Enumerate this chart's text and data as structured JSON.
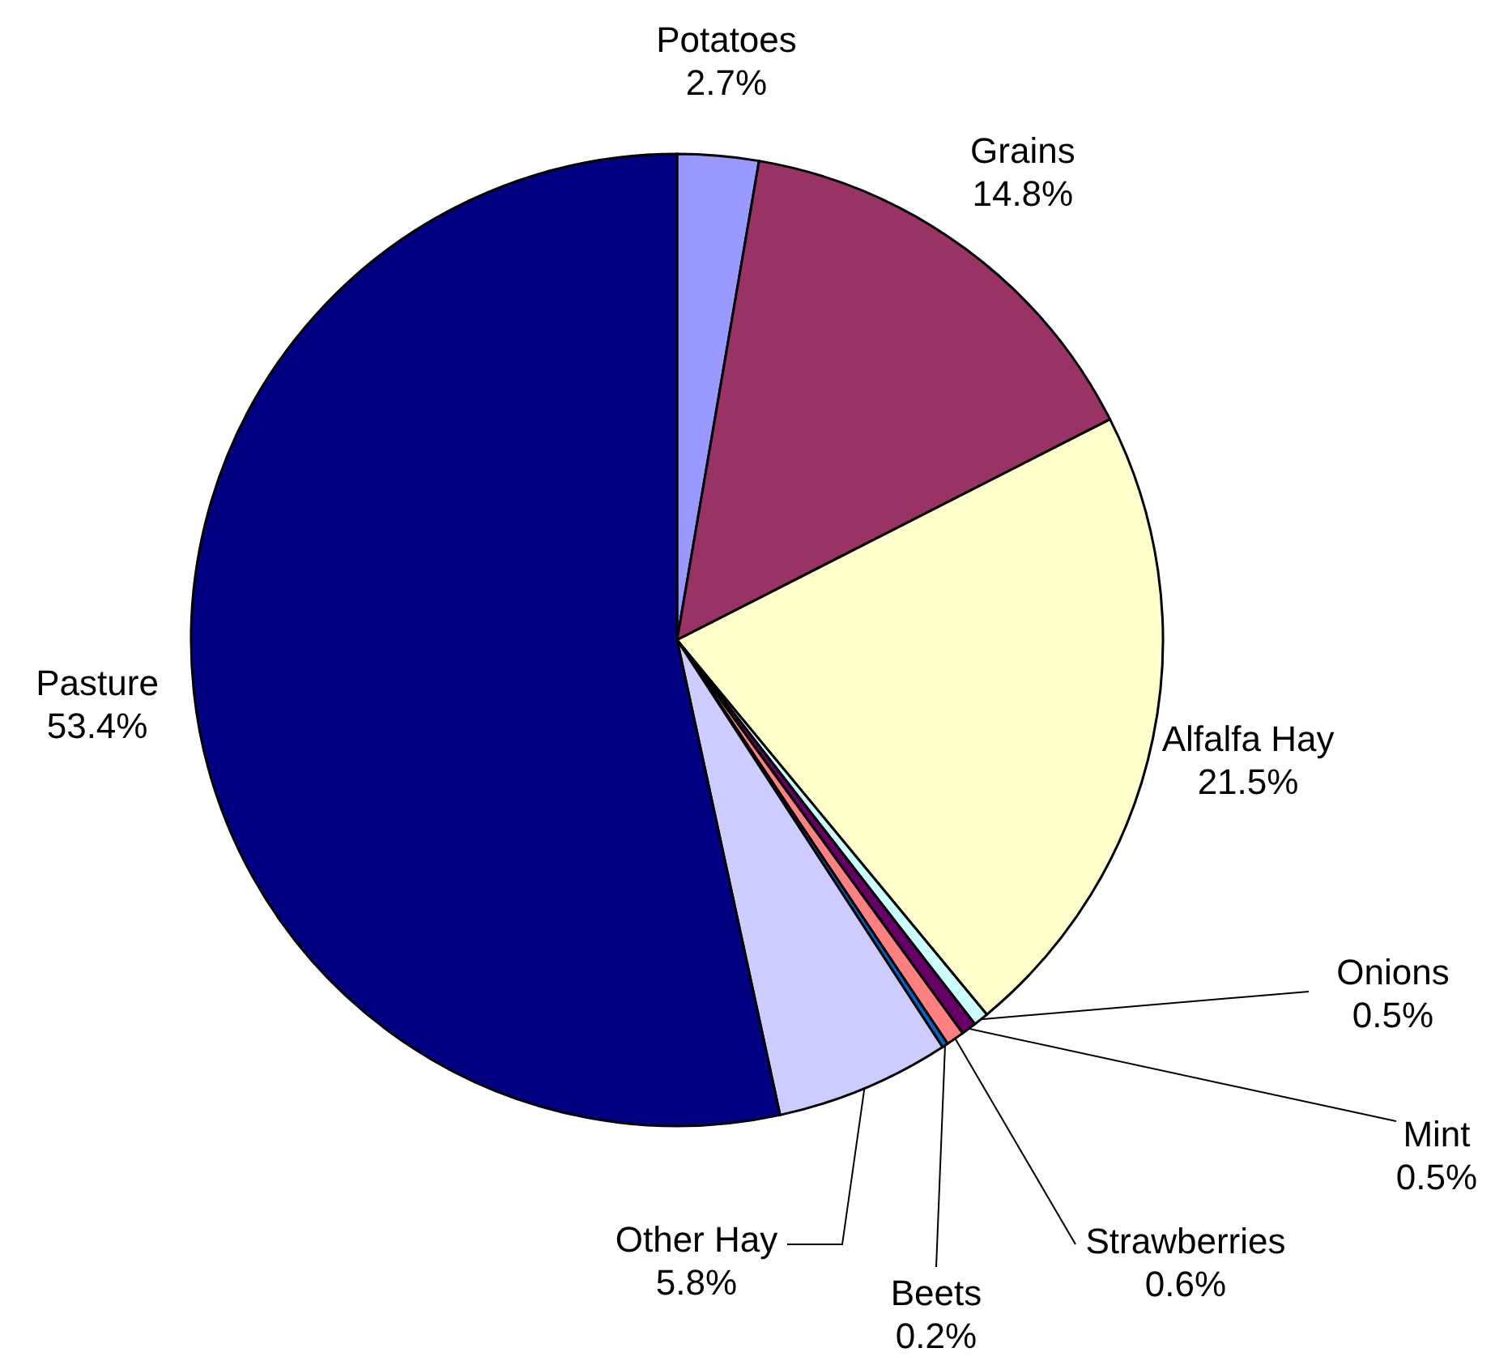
{
  "chart_data": {
    "type": "pie",
    "categories": [
      "Potatoes",
      "Grains",
      "Alfalfa Hay",
      "Onions",
      "Mint",
      "Strawberries",
      "Beets",
      "Other Hay",
      "Pasture"
    ],
    "values": [
      2.7,
      14.8,
      21.5,
      0.5,
      0.5,
      0.6,
      0.2,
      5.8,
      53.4
    ],
    "colors": [
      "#9999ff",
      "#993366",
      "#ffffcc",
      "#ccffff",
      "#660066",
      "#ff8080",
      "#0066cc",
      "#ccccff",
      "#000080"
    ],
    "value_labels": [
      "2.7%",
      "14.8%",
      "21.5%",
      "0.5%",
      "0.5%",
      "0.6%",
      "0.2%",
      "5.8%",
      "53.4%"
    ]
  }
}
